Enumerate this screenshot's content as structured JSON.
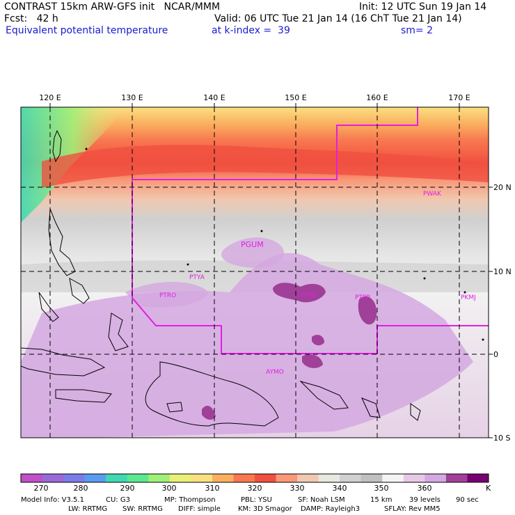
{
  "header": {
    "line1_left": "CONTRAST 15km ARW-GFS init   NCAR/MMM",
    "line1_right": "Init: 12 UTC Sun 19 Jan 14",
    "line2_left": "Fcst:   42 h",
    "line2_right": "Valid: 06 UTC Tue 21 Jan 14 (16 ChT Tue 21 Jan 14)",
    "line3_left": "Equivalent potential temperature",
    "line3_mid": "at k-index =  39",
    "line3_right": "sm= 2"
  },
  "map": {
    "lon_labels": [
      "120 E",
      "130 E",
      "140 E",
      "150 E",
      "160 E",
      "170 E"
    ],
    "lat_labels": [
      "20 N",
      "10 N",
      "0",
      "10 S"
    ],
    "stations": [
      "PWAK",
      "PGUM",
      "PTYA",
      "PTRO",
      "PTKK",
      "PTPP",
      "PKMJ",
      "AYMO"
    ]
  },
  "colorbar": {
    "tick_labels": [
      "270",
      "280",
      "290",
      "300",
      "310",
      "320",
      "330",
      "340",
      "350",
      "360"
    ],
    "unit": "K",
    "colors": [
      "#c050c8",
      "#9a6ad8",
      "#7c7ce8",
      "#5a9cf0",
      "#40d8b0",
      "#5ae890",
      "#a0f078",
      "#e8f078",
      "#fae080",
      "#fab060",
      "#f87850",
      "#f05040",
      "#f89878",
      "#f0c8b0",
      "#e8e8e0",
      "#d0d0d0",
      "#c0c0c0",
      "#f4f4f4",
      "#e8c8e8",
      "#d4a8e0",
      "#a04098",
      "#780070"
    ]
  },
  "footer": {
    "line1": [
      "Model Info: V3.5.1",
      "CU: G3",
      "MP: Thompson",
      "PBL: YSU",
      "SF: Noah LSM",
      "15 km",
      "39 levels",
      "90 sec"
    ],
    "line2": [
      "LW: RRTMG",
      "SW: RRTMG",
      "DIFF: simple",
      "KM: 3D Smagor",
      "DAMP: Rayleigh3",
      "SFLAY: Rev MM5"
    ]
  },
  "colors": {
    "domain_outline": "#e020e0",
    "title_blue": "#1a1ad0"
  }
}
